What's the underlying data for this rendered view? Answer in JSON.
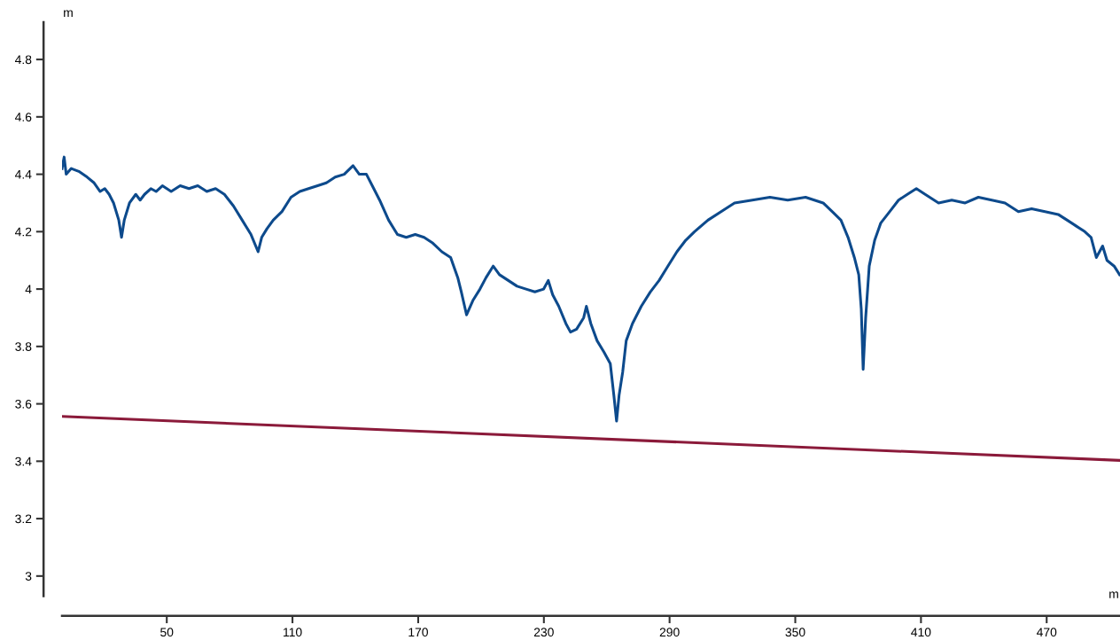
{
  "chart_data": {
    "type": "line",
    "xlabel": "m",
    "ylabel": "m",
    "xlim": [
      0,
      505
    ],
    "ylim": [
      2.93,
      4.93
    ],
    "xticks": [
      50,
      110,
      170,
      230,
      290,
      350,
      410,
      470
    ],
    "yticks": [
      3,
      3.2,
      3.4,
      3.6,
      3.8,
      4,
      4.2,
      4.4,
      4.6,
      4.8
    ],
    "grid": false,
    "legend": false,
    "marker": "none",
    "line_style": "solid",
    "x": [
      0,
      1,
      2,
      4.4,
      8,
      12,
      15.3,
      18.2,
      20.4,
      22.5,
      24.6,
      27.1,
      28.4,
      29.7,
      32.2,
      35.2,
      37.3,
      39.4,
      42.4,
      44.9,
      47.9,
      52.1,
      56.4,
      60.6,
      64.8,
      69.1,
      73.3,
      77.5,
      81.8,
      86,
      90.2,
      93.6,
      95.3,
      97.8,
      100.8,
      105,
      109.3,
      113.5,
      117.7,
      122,
      126.2,
      130.4,
      134.7,
      138.9,
      141.9,
      145.3,
      149.5,
      151.6,
      155.9,
      160.1,
      164.3,
      168.6,
      172.8,
      177,
      181.3,
      185.5,
      188.9,
      190.6,
      193.1,
      196.1,
      199.5,
      202.4,
      205.8,
      208.8,
      213,
      217.2,
      221.5,
      225.7,
      229.9,
      232.1,
      234.2,
      237.1,
      240.5,
      242.7,
      245.6,
      249,
      250.3,
      252.4,
      255.4,
      258.7,
      261.7,
      263.4,
      264.7,
      265.9,
      267.6,
      269.3,
      272.3,
      276.5,
      280.8,
      285,
      289.2,
      293.5,
      297.7,
      301.9,
      308.3,
      314.6,
      321,
      329.5,
      337.9,
      346.4,
      354.9,
      363.3,
      367.6,
      371.8,
      375.2,
      378.2,
      380.3,
      381.5,
      382.4,
      383.6,
      385.3,
      387.9,
      390.8,
      395.1,
      399.3,
      403.5,
      407.8,
      412,
      418.4,
      424.7,
      431.1,
      437.4,
      443.8,
      450.1,
      456.5,
      462.8,
      469.2,
      475.5,
      479.8,
      484,
      488.2,
      491.2,
      493.7,
      496.7,
      498.8,
      502.2,
      504.8
    ],
    "series": [
      {
        "color": "#0d4a8c",
        "values": [
          4.42,
          4.46,
          4.4,
          4.42,
          4.41,
          4.39,
          4.37,
          4.34,
          4.35,
          4.33,
          4.3,
          4.24,
          4.18,
          4.24,
          4.3,
          4.33,
          4.31,
          4.33,
          4.35,
          4.34,
          4.36,
          4.34,
          4.36,
          4.35,
          4.36,
          4.34,
          4.35,
          4.33,
          4.29,
          4.24,
          4.19,
          4.13,
          4.18,
          4.21,
          4.24,
          4.27,
          4.32,
          4.34,
          4.35,
          4.36,
          4.37,
          4.39,
          4.4,
          4.43,
          4.4,
          4.4,
          4.34,
          4.31,
          4.24,
          4.19,
          4.18,
          4.19,
          4.18,
          4.16,
          4.13,
          4.11,
          4.04,
          3.99,
          3.91,
          3.96,
          4.0,
          4.04,
          4.08,
          4.05,
          4.03,
          4.01,
          4.0,
          3.99,
          4.0,
          4.03,
          3.98,
          3.94,
          3.88,
          3.85,
          3.86,
          3.9,
          3.94,
          3.88,
          3.82,
          3.78,
          3.74,
          3.63,
          3.54,
          3.63,
          3.71,
          3.82,
          3.88,
          3.94,
          3.99,
          4.03,
          4.08,
          4.13,
          4.17,
          4.2,
          4.24,
          4.27,
          4.3,
          4.31,
          4.32,
          4.31,
          4.32,
          4.3,
          4.27,
          4.24,
          4.18,
          4.11,
          4.05,
          3.93,
          3.72,
          3.9,
          4.08,
          4.17,
          4.23,
          4.27,
          4.31,
          4.33,
          4.35,
          4.33,
          4.3,
          4.31,
          4.3,
          4.32,
          4.31,
          4.3,
          4.27,
          4.28,
          4.27,
          4.26,
          4.24,
          4.22,
          4.2,
          4.18,
          4.11,
          4.15,
          4.1,
          4.08,
          4.05
        ]
      },
      {
        "color": "#8b1a3a",
        "x": [
          0,
          505
        ],
        "values": [
          3.556,
          3.403
        ]
      }
    ]
  }
}
